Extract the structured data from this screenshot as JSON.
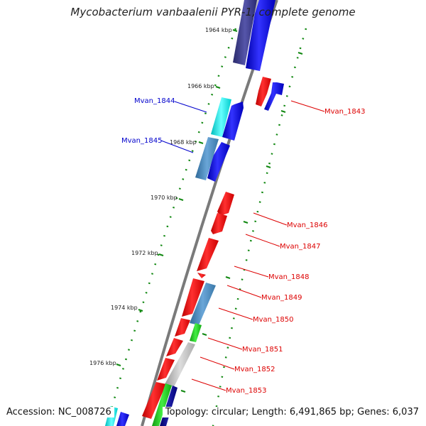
{
  "title": "Mycobacterium vanbaalenii PYR-1, complete genome",
  "accession": "Accession: NC_008726",
  "summary": "Topology: circular; Length: 6,491,865 bp; Genes: 6,037",
  "colors": {
    "forward_cds": "#0000ee",
    "reverse_cds": "#ee0000",
    "navy_cds": "#3a3a8a",
    "cyan_cds": "#00eeee",
    "steel_cds": "#4a86b8",
    "green_cds": "#22cc22",
    "gray_cds": "#b8b8b8",
    "backbone": "#7a7a7a",
    "tick_major": "#008800",
    "tick_minor": "#008800",
    "label_blue": "#0000cc",
    "label_red": "#dd0000"
  },
  "ticks": [
    {
      "label": "1964 kbp"
    },
    {
      "label": "1966 kbp"
    },
    {
      "label": "1968 kbp"
    },
    {
      "label": "1970 kbp"
    },
    {
      "label": "1972 kbp"
    },
    {
      "label": "1974 kbp"
    },
    {
      "label": "1976 kbp"
    }
  ],
  "gene_labels": [
    {
      "name": "Mvan_1843",
      "color": "#dd0000"
    },
    {
      "name": "Mvan_1844",
      "color": "#0000cc"
    },
    {
      "name": "Mvan_1845",
      "color": "#0000cc"
    },
    {
      "name": "Mvan_1846",
      "color": "#dd0000"
    },
    {
      "name": "Mvan_1847",
      "color": "#dd0000"
    },
    {
      "name": "Mvan_1848",
      "color": "#dd0000"
    },
    {
      "name": "Mvan_1849",
      "color": "#dd0000"
    },
    {
      "name": "Mvan_1850",
      "color": "#dd0000"
    },
    {
      "name": "Mvan_1851",
      "color": "#dd0000"
    },
    {
      "name": "Mvan_1852",
      "color": "#dd0000"
    },
    {
      "name": "Mvan_1853",
      "color": "#dd0000"
    }
  ]
}
